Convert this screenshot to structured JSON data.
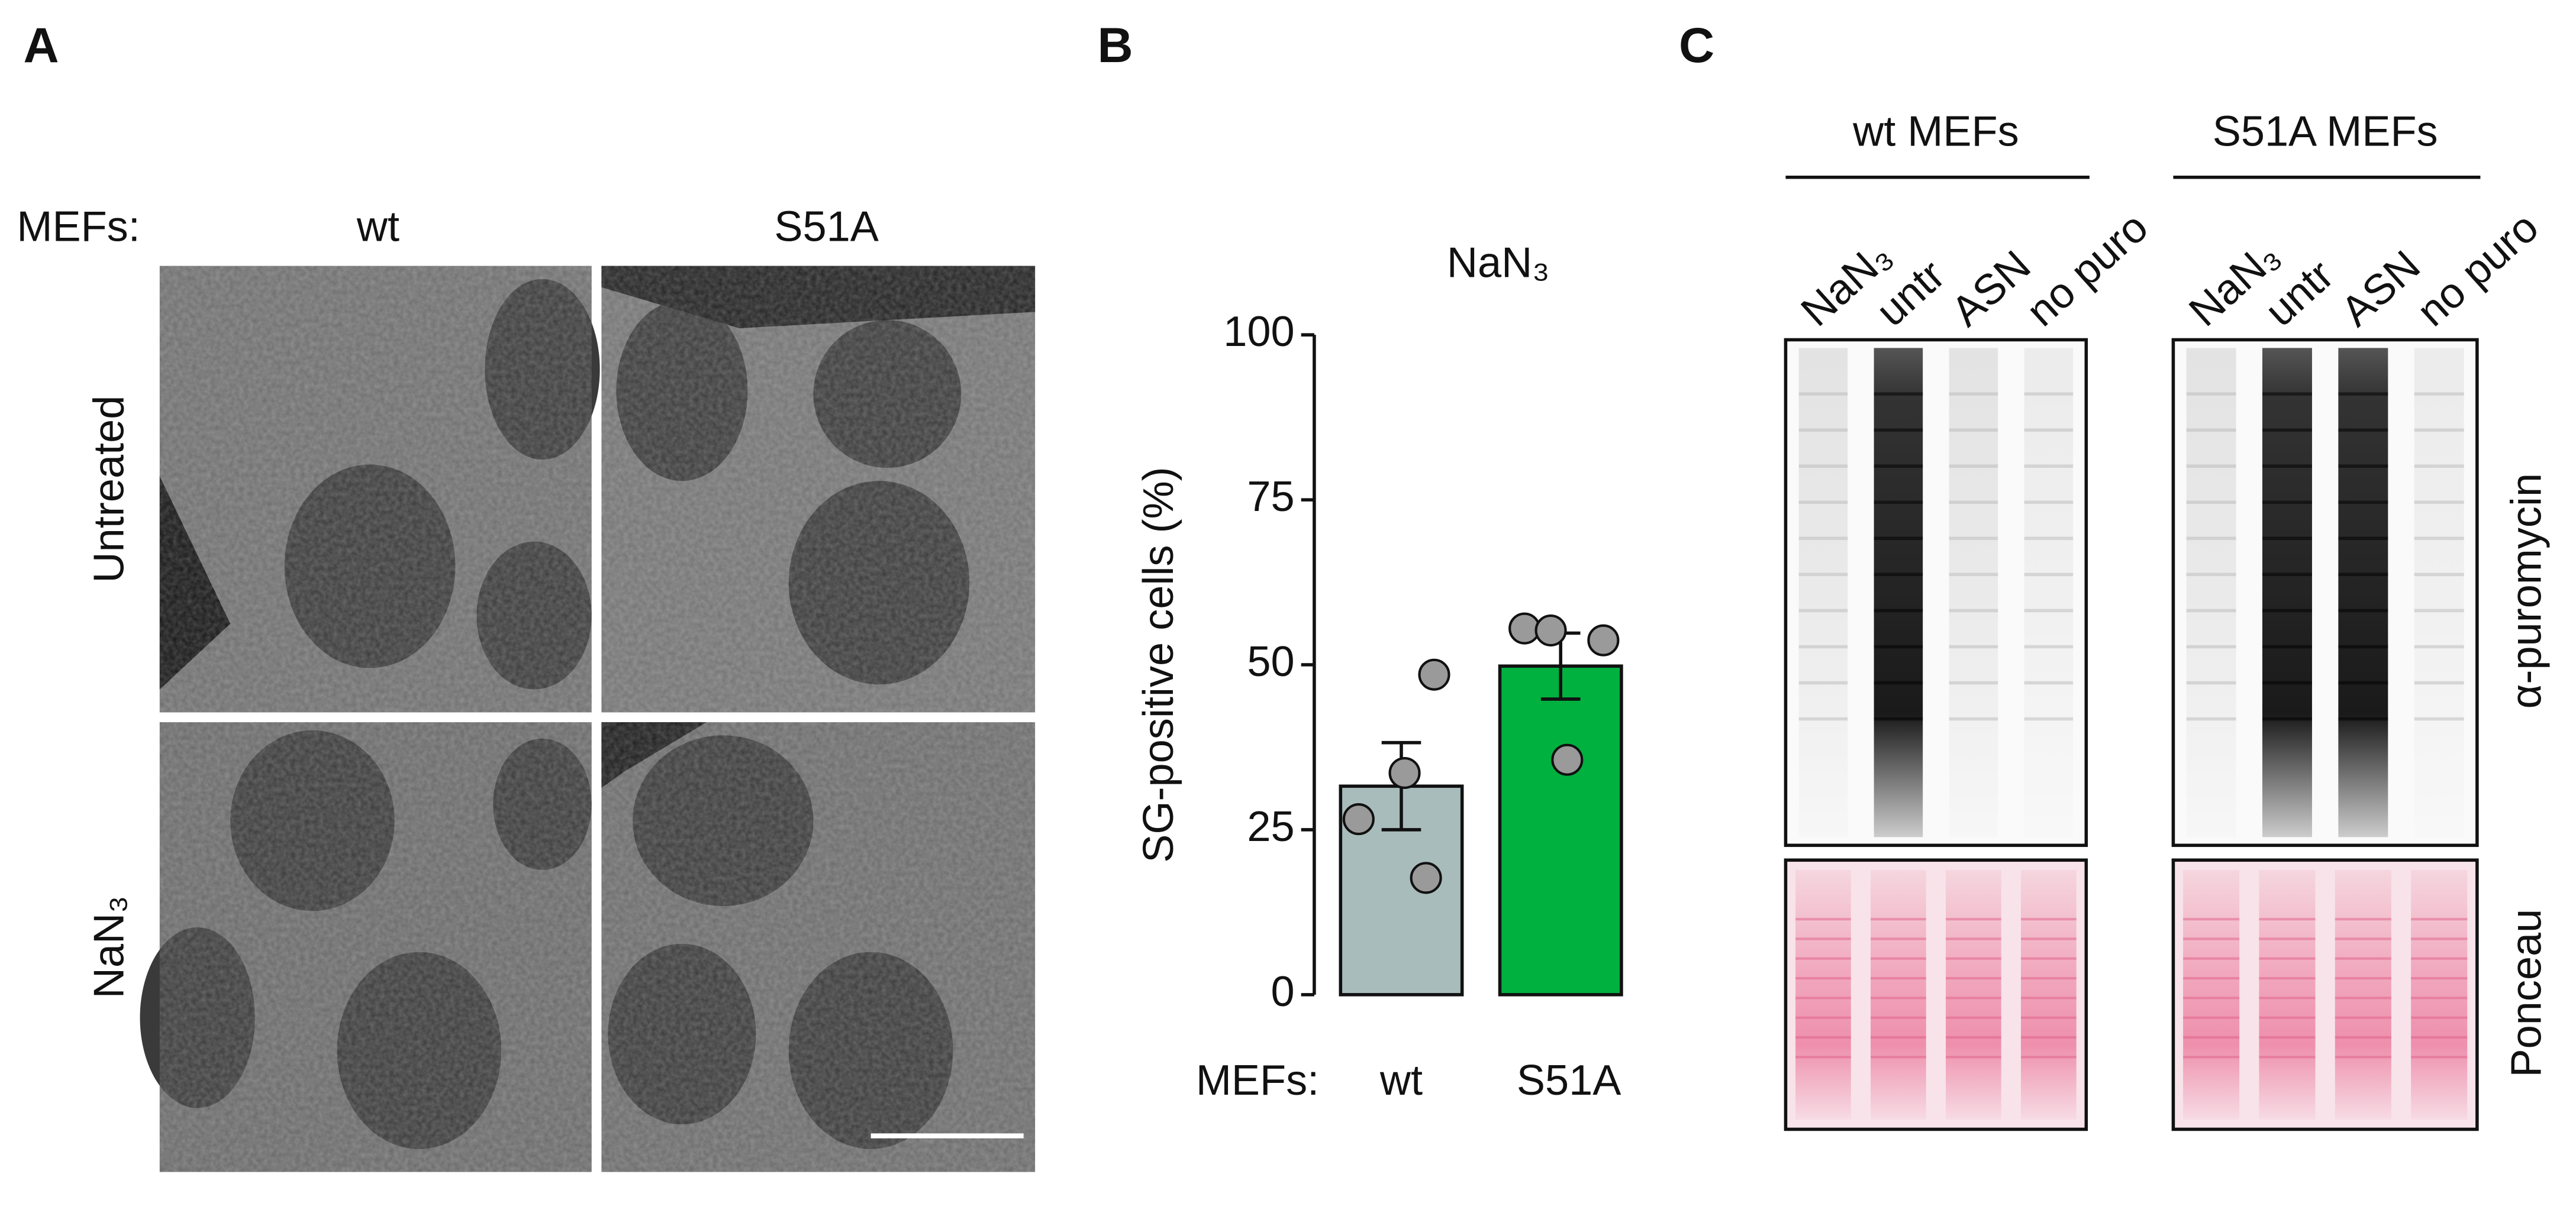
{
  "panel_a": {
    "letter": "A",
    "row_prefix": "MEFs:",
    "columns": [
      "wt",
      "S51A"
    ],
    "rows": [
      "Untreated",
      "NaN₃"
    ]
  },
  "chart_data": {
    "type": "bar",
    "letter": "B",
    "title": "NaN₃",
    "y_label": "SG-positive cells (%)",
    "x_prefix": "MEFs:",
    "categories": [
      "wt",
      "S51A"
    ],
    "values": [
      31.6,
      49.8
    ],
    "errors": [
      6.6,
      5.0
    ],
    "points": [
      [
        48.5,
        33.6,
        26.6,
        17.7
      ],
      [
        55.5,
        55.2,
        53.7,
        35.6
      ]
    ],
    "colors": [
      "#a9bcbc",
      "#00b140"
    ],
    "point_color": "#9a9a9a",
    "ylim": [
      0,
      100
    ],
    "yticks": [
      0,
      25,
      50,
      75,
      100
    ]
  },
  "panel_c": {
    "letter": "C",
    "blots": [
      {
        "title": "wt MEFs",
        "lanes": [
          "NaN₃",
          "untr",
          "ASN",
          "no puro"
        ]
      },
      {
        "title": "S51A MEFs",
        "lanes": [
          "NaN₃",
          "untr",
          "ASN",
          "no puro"
        ]
      }
    ],
    "rows": [
      "α-puromycin",
      "Ponceau"
    ]
  }
}
